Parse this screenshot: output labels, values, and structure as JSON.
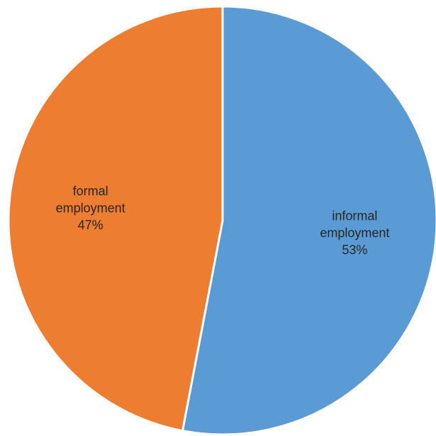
{
  "chart_data": {
    "type": "pie",
    "title": "",
    "slices": [
      {
        "name": "informal employment",
        "value": 53,
        "label_lines": [
          "informal",
          "employment",
          "53%"
        ],
        "color": "#5B9BD5"
      },
      {
        "name": "formal employment",
        "value": 47,
        "label_lines": [
          "formal",
          "employment",
          "47%"
        ],
        "color": "#ED7D31"
      }
    ],
    "start_angle_deg": 0,
    "direction": "clockwise",
    "slice_border_color": "#ffffff",
    "legend": "none"
  }
}
